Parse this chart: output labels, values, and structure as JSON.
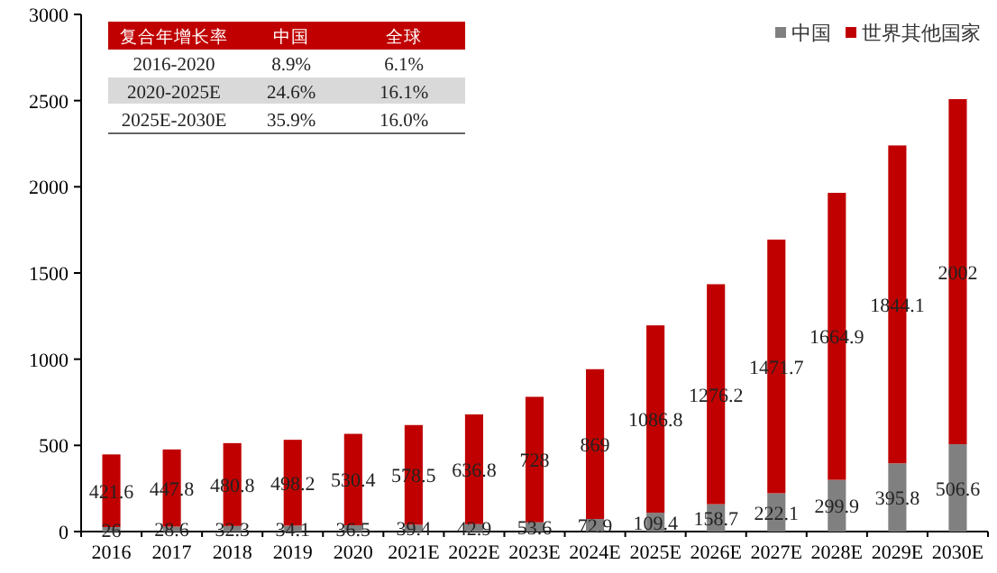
{
  "chart_data": {
    "type": "bar",
    "stacked": true,
    "data_labels": true,
    "legend": "top right",
    "grid": false,
    "categories": [
      "2016",
      "2017",
      "2018",
      "2019",
      "2020",
      "2021E",
      "2022E",
      "2023E",
      "2024E",
      "2025E",
      "2026E",
      "2027E",
      "2028E",
      "2029E",
      "2030E"
    ],
    "series": [
      {
        "name": "中国",
        "color": "#808080",
        "values": [
          26,
          28.6,
          32.3,
          34.1,
          36.5,
          39.4,
          42.9,
          53.6,
          72.9,
          109.4,
          158.7,
          222.1,
          299.9,
          395.8,
          506.6
        ]
      },
      {
        "name": "世界其他国家",
        "color": "#c00000",
        "values": [
          421.6,
          447.8,
          480.8,
          498.2,
          530.4,
          578.5,
          636.8,
          728,
          869,
          1086.8,
          1276.2,
          1471.7,
          1664.9,
          1844.1,
          2002
        ]
      }
    ],
    "ylim": [
      0,
      3000
    ],
    "yticks": [
      0,
      500,
      1000,
      1500,
      2000,
      2500,
      3000
    ],
    "annotations": [
      "复合年增长率",
      "中国",
      "全球",
      "2016-2020",
      "8.9%",
      "6.1%",
      "2020-2025E",
      "24.6%",
      "16.1%",
      "2025E-2030E",
      "35.9%",
      "16.0%"
    ]
  }
}
